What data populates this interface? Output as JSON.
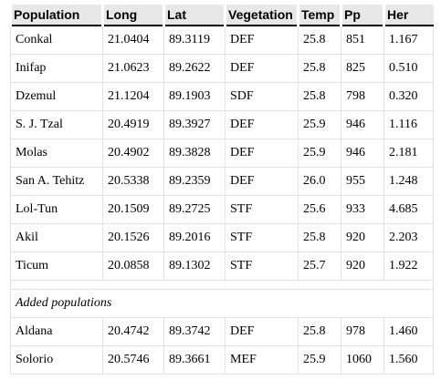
{
  "table": {
    "header": [
      "Population",
      "Long",
      "Lat",
      "Vegetation",
      "Temp",
      "Pp",
      "Her"
    ],
    "rows": [
      [
        "Conkal",
        "21.0404",
        "89.3119",
        "DEF",
        "25.8",
        "851",
        "1.167"
      ],
      [
        "Inifap",
        "21.0623",
        "89.2622",
        "DEF",
        "25.8",
        "825",
        "0.510"
      ],
      [
        "Dzemul",
        "21.1204",
        "89.1903",
        "SDF",
        "25.8",
        "798",
        "0.320"
      ],
      [
        "S. J. Tzal",
        "20.4919",
        "89.3927",
        "DEF",
        "25.9",
        "946",
        "1.116"
      ],
      [
        "Molas",
        "20.4902",
        "89.3828",
        "DEF",
        "25.9",
        "946",
        "2.181"
      ],
      [
        "San A. Tehitz",
        "20.5338",
        "89.2359",
        "DEF",
        "26.0",
        "955",
        "1.248"
      ],
      [
        "Lol-Tun",
        "20.1509",
        "89.2725",
        "STF",
        "25.6",
        "933",
        "4.685"
      ],
      [
        "Akil",
        "20.1526",
        "89.2016",
        "STF",
        "25.8",
        "920",
        "2.203"
      ],
      [
        "Ticum",
        "20.0858",
        "89.1302",
        "STF",
        "25.7",
        "920",
        "1.922"
      ]
    ],
    "section": "Added populations",
    "added_rows": [
      [
        "Aldana",
        "20.4742",
        "89.3742",
        "DEF",
        "25.8",
        "978",
        "1.460"
      ],
      [
        "Solorio",
        "20.5746",
        "89.3661",
        "MEF",
        "25.9",
        "1060",
        "1.560"
      ]
    ]
  }
}
